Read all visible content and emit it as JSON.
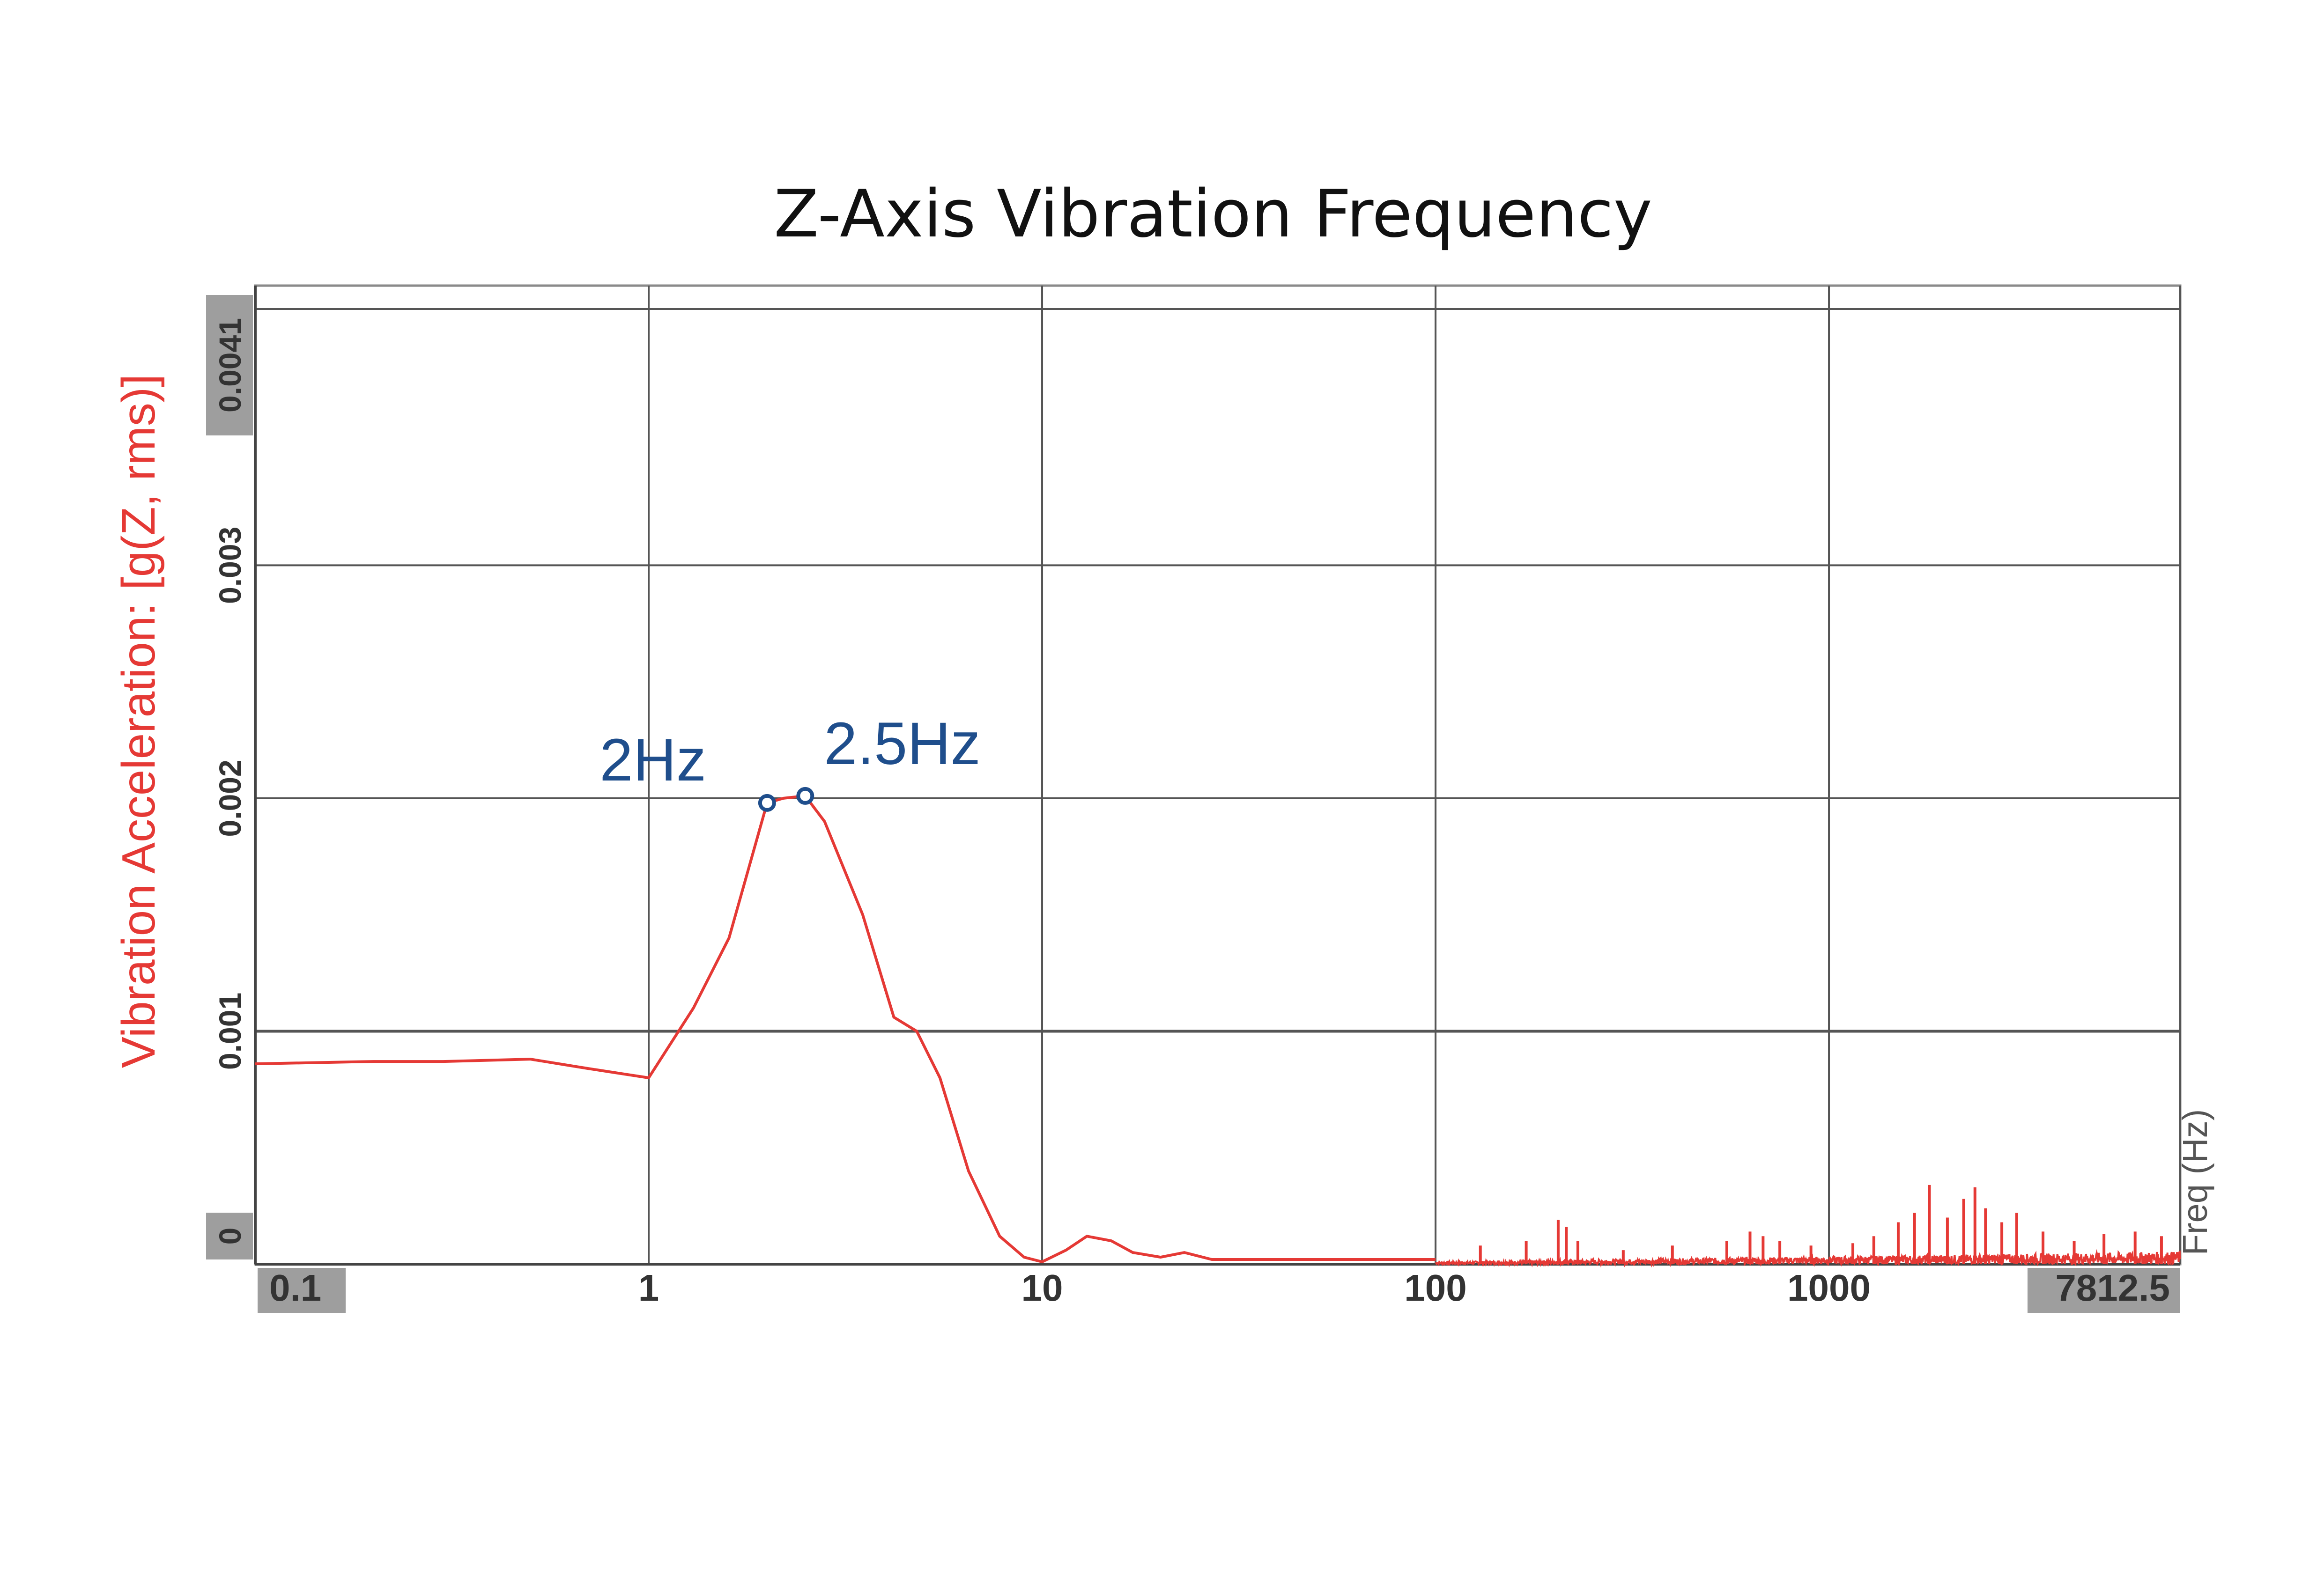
{
  "chart_data": {
    "type": "line",
    "title": "Z-Axis Vibration Frequency",
    "ylabel": "Vibration Acceleration: [g(Z, rms)]",
    "xlabel": "Freq (Hz)",
    "x_scale": "log",
    "xlim": [
      0.1,
      7812.5
    ],
    "ylim": [
      0,
      0.0041
    ],
    "x_ticks": [
      {
        "value": 0.1,
        "label": "0.1",
        "boxed": true
      },
      {
        "value": 1,
        "label": "1",
        "boxed": false
      },
      {
        "value": 10,
        "label": "10",
        "boxed": false
      },
      {
        "value": 100,
        "label": "100",
        "boxed": false
      },
      {
        "value": 1000,
        "label": "1000",
        "boxed": false
      },
      {
        "value": 7812.5,
        "label": "7812.5",
        "boxed": true
      }
    ],
    "y_ticks": [
      {
        "value": 0,
        "label": "0",
        "boxed": true
      },
      {
        "value": 0.001,
        "label": "0.001",
        "boxed": false
      },
      {
        "value": 0.002,
        "label": "0.002",
        "boxed": false
      },
      {
        "value": 0.003,
        "label": "0.003",
        "boxed": false
      },
      {
        "value": 0.0041,
        "label": "0.0041",
        "boxed": true
      }
    ],
    "grid": true,
    "legend": "none",
    "series": [
      {
        "color": "#e53935",
        "points": [
          [
            0.1,
            0.00086
          ],
          [
            0.2,
            0.00087
          ],
          [
            0.3,
            0.00087
          ],
          [
            0.5,
            0.00088
          ],
          [
            0.7,
            0.00084
          ],
          [
            1.0,
            0.0008
          ],
          [
            1.3,
            0.0011
          ],
          [
            1.6,
            0.0014
          ],
          [
            2.0,
            0.00198
          ],
          [
            2.2,
            0.002
          ],
          [
            2.5,
            0.00201
          ],
          [
            2.8,
            0.0019
          ],
          [
            3.5,
            0.0015
          ],
          [
            4.2,
            0.00106
          ],
          [
            4.8,
            0.001
          ],
          [
            5.5,
            0.0008
          ],
          [
            6.5,
            0.0004
          ],
          [
            7.8,
            0.00012
          ],
          [
            9.0,
            3e-05
          ],
          [
            10.0,
            1e-05
          ],
          [
            11.5,
            6e-05
          ],
          [
            13.0,
            0.00012
          ],
          [
            15.0,
            0.0001
          ],
          [
            17.0,
            5e-05
          ],
          [
            20.0,
            3e-05
          ],
          [
            23.0,
            5e-05
          ],
          [
            27.0,
            2e-05
          ],
          [
            35.0,
            2e-05
          ],
          [
            50.0,
            2e-05
          ],
          [
            100.0,
            2e-05
          ]
        ]
      }
    ],
    "noise_floor": {
      "color": "#e53935",
      "x_from": 100,
      "x_to": 7812.5,
      "base_value": 2e-05,
      "spikes": [
        [
          130,
          8e-05
        ],
        [
          170,
          0.0001
        ],
        [
          205,
          0.00019
        ],
        [
          215,
          0.00016
        ],
        [
          230,
          0.0001
        ],
        [
          300,
          6e-05
        ],
        [
          400,
          8e-05
        ],
        [
          550,
          0.0001
        ],
        [
          630,
          0.00014
        ],
        [
          680,
          0.00012
        ],
        [
          750,
          0.0001
        ],
        [
          900,
          8e-05
        ],
        [
          1150,
          9e-05
        ],
        [
          1300,
          0.00012
        ],
        [
          1500,
          0.00018
        ],
        [
          1650,
          0.00022
        ],
        [
          1800,
          0.00034
        ],
        [
          2000,
          0.0002
        ],
        [
          2200,
          0.00028
        ],
        [
          2350,
          0.00033
        ],
        [
          2500,
          0.00024
        ],
        [
          2750,
          0.00018
        ],
        [
          3000,
          0.00022
        ],
        [
          3500,
          0.00014
        ],
        [
          4200,
          0.0001
        ],
        [
          5000,
          0.00013
        ],
        [
          6000,
          0.00014
        ],
        [
          7000,
          0.00012
        ]
      ]
    },
    "annotations": [
      {
        "label": "2Hz",
        "x": 2.0,
        "y": 0.00198,
        "color": "#1f4e8c"
      },
      {
        "label": "2.5Hz",
        "x": 2.5,
        "y": 0.00201,
        "color": "#1f4e8c"
      }
    ]
  },
  "colors": {
    "series": "#e53935",
    "ylabel": "#e53935",
    "annotation": "#1f4e8c",
    "grid": "#555555",
    "tick_box": "#9e9e9e"
  }
}
